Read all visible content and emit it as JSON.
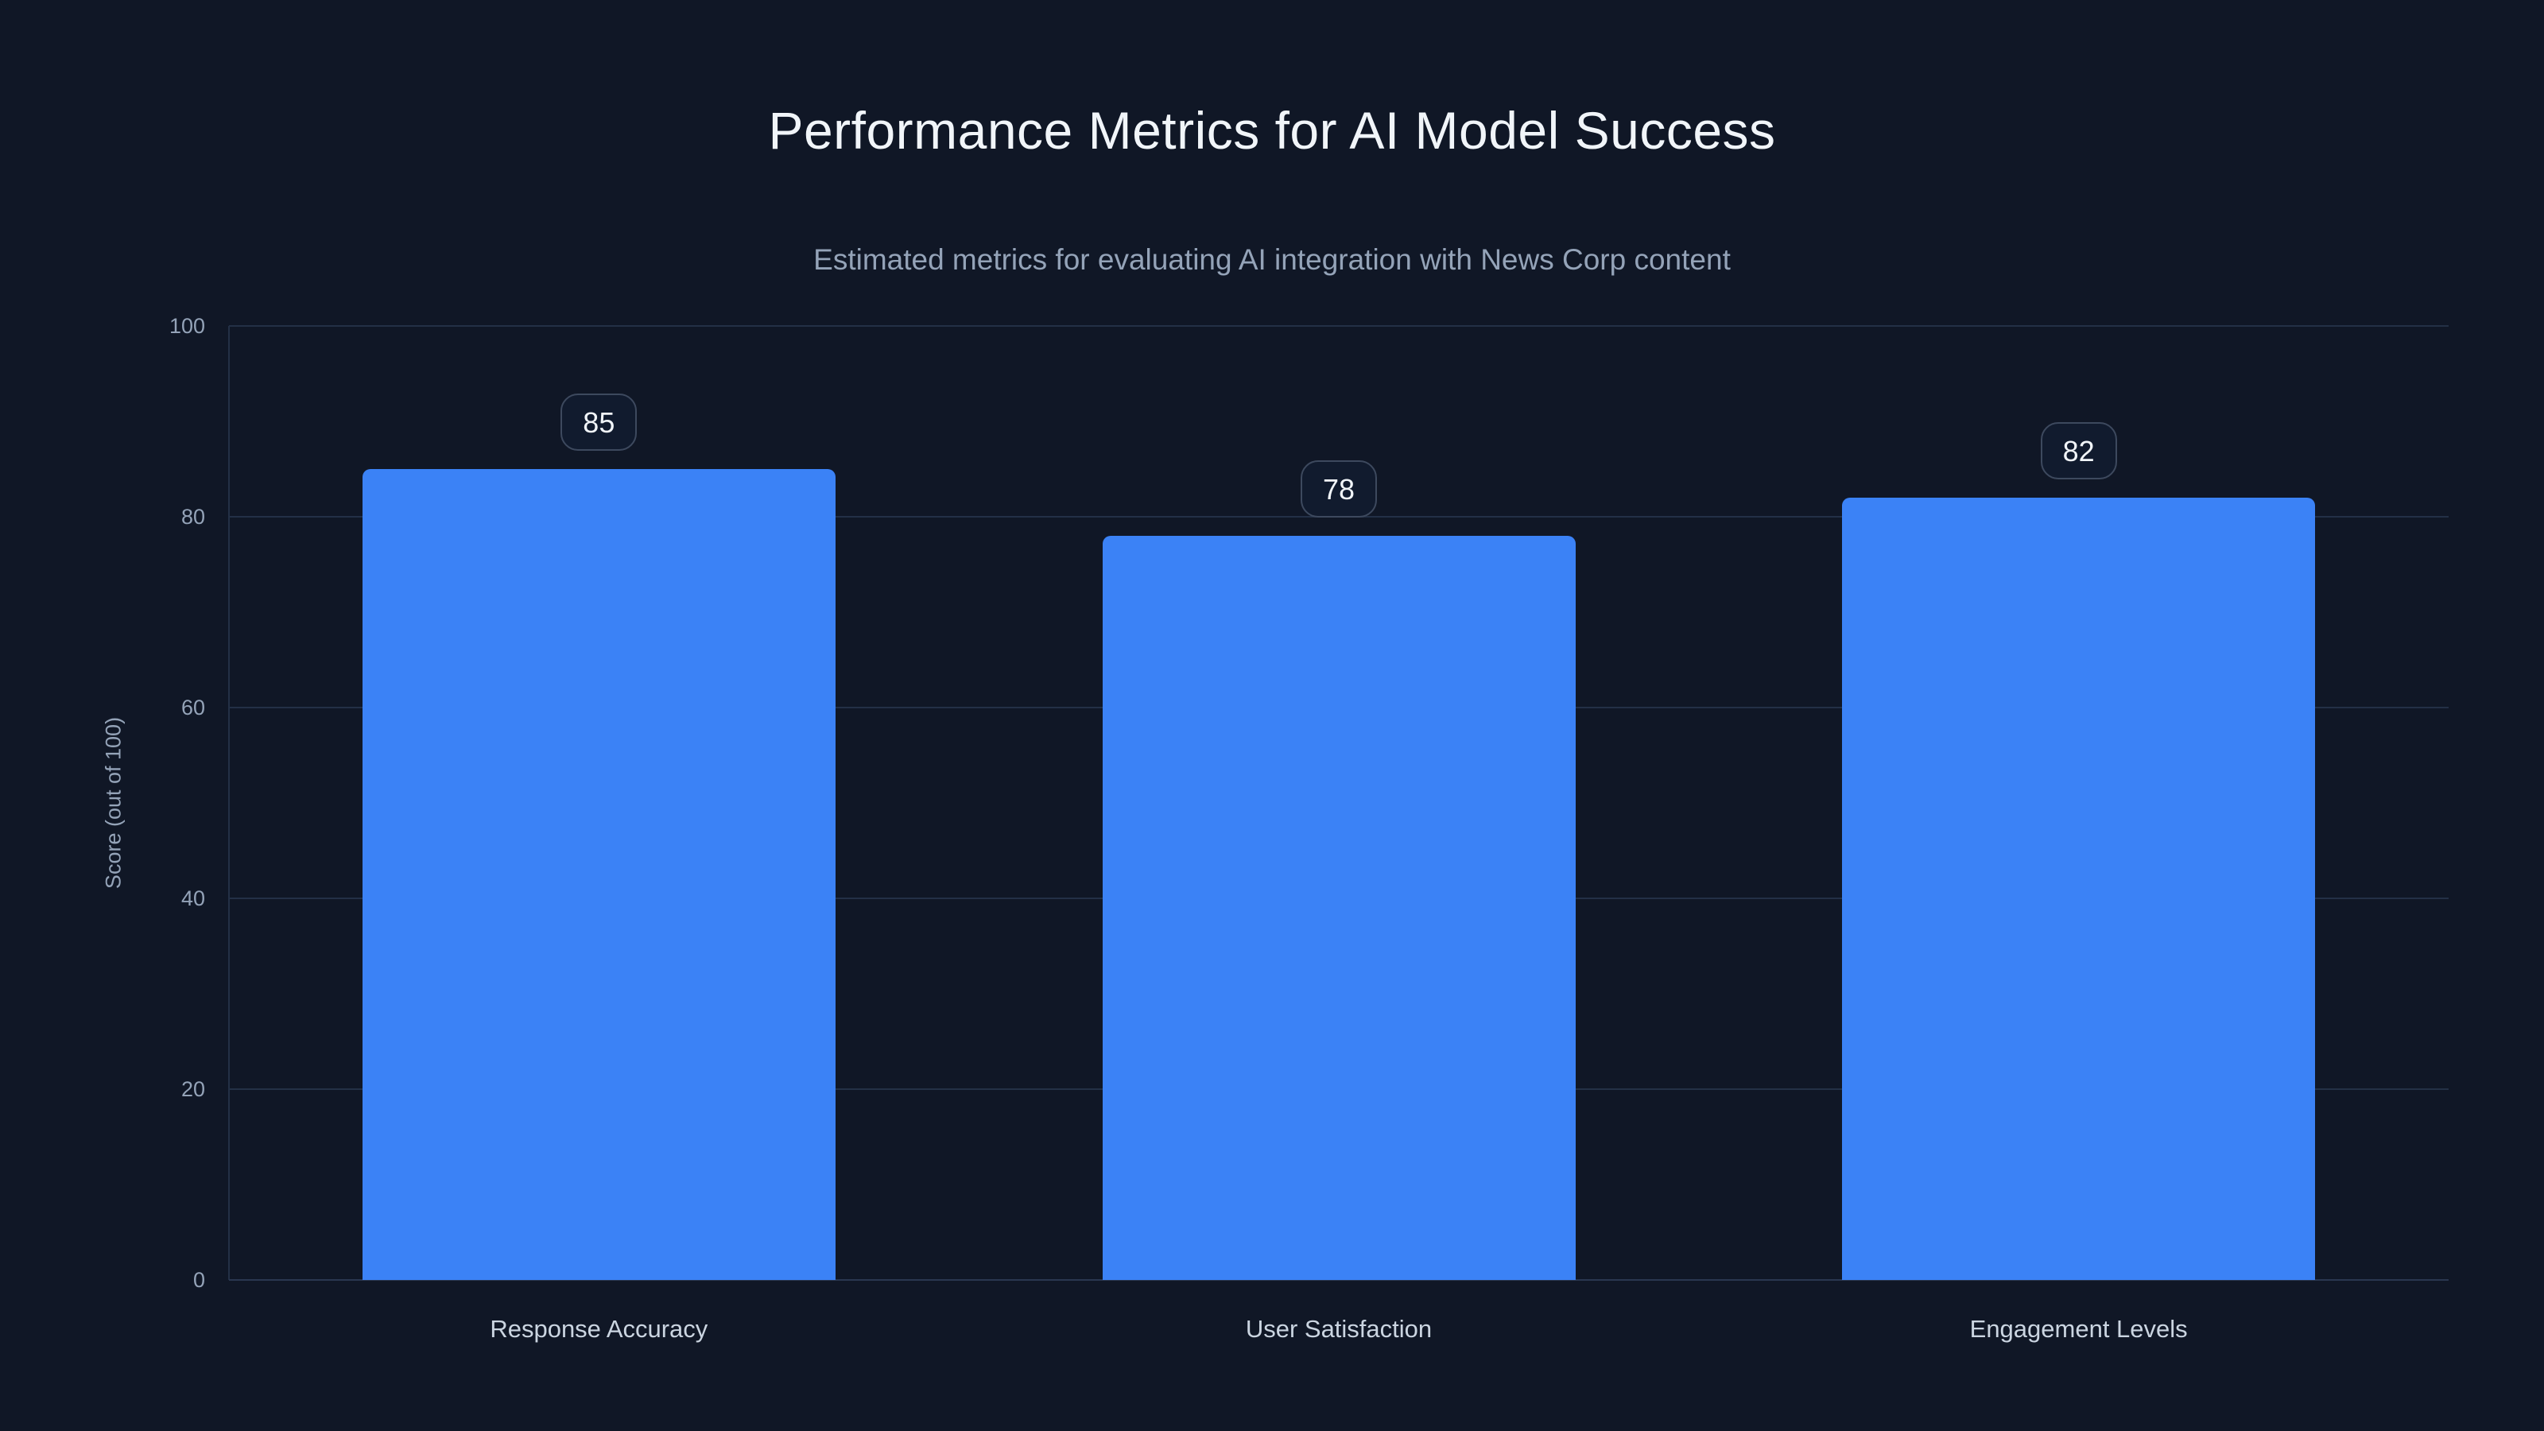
{
  "title": "Performance Metrics for AI Model Success",
  "subtitle": "Estimated metrics for evaluating AI integration with News Corp content",
  "colors": {
    "background": "#101726",
    "bar": "#3b82f6",
    "gridline": "#233046",
    "title_text": "#f1f5f9",
    "muted_text": "#94a3b8",
    "category_text": "#cbd5e1",
    "badge_border": "#3d495e"
  },
  "chart_data": {
    "type": "bar",
    "title": "Performance Metrics for AI Model Success",
    "subtitle": "Estimated metrics for evaluating AI integration with News Corp content",
    "categories": [
      "Response Accuracy",
      "User Satisfaction",
      "Engagement Levels"
    ],
    "values": [
      85,
      78,
      82
    ],
    "value_labels": [
      "85",
      "78",
      "82"
    ],
    "xlabel": "",
    "ylabel": "Score (out of 100)",
    "ylim": [
      0,
      100
    ],
    "yticks": [
      0,
      20,
      40,
      60,
      80,
      100
    ],
    "grid": true,
    "legend": false,
    "bar_color": "#3b82f6"
  }
}
